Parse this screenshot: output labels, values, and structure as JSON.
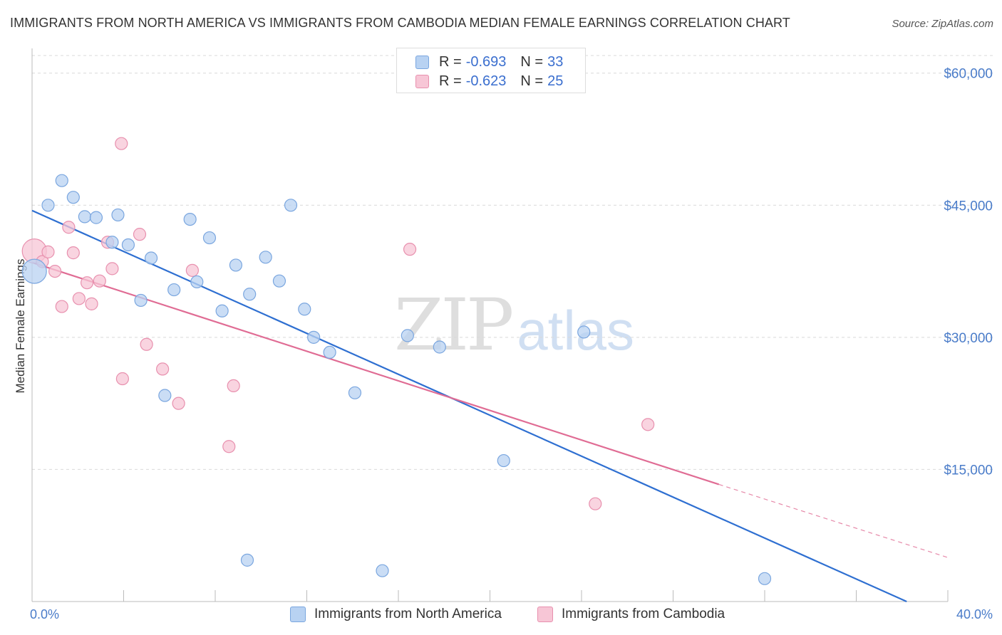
{
  "title": "IMMIGRANTS FROM NORTH AMERICA VS IMMIGRANTS FROM CAMBODIA MEDIAN FEMALE EARNINGS CORRELATION CHART",
  "source": "Source: ZipAtlas.com",
  "watermark": {
    "zip": "ZIP",
    "atlas": "atlas"
  },
  "legend": {
    "rows": [
      {
        "r_label": "R =",
        "r_value": "-0.693",
        "n_label": "N =",
        "n_value": "33"
      },
      {
        "r_label": "R =",
        "r_value": "-0.623",
        "n_label": "N =",
        "n_value": "25"
      }
    ]
  },
  "colors": {
    "north_america_fill": "#b8d2f2",
    "north_america_stroke": "#7aa6df",
    "north_america_line": "#2e6fd1",
    "cambodia_fill": "#f7c6d6",
    "cambodia_stroke": "#e890ae",
    "cambodia_line": "#e06c94",
    "grid": "#d9d9d9",
    "tick_text": "#4a7cc9"
  },
  "chart_data": {
    "type": "scatter",
    "ylabel": "Median Female Earnings",
    "xlim": [
      0,
      40
    ],
    "ylim": [
      0,
      62000
    ],
    "x_tick_labels": [
      "0.0%",
      "40.0%"
    ],
    "y_ticks": [
      15000,
      30000,
      45000,
      60000
    ],
    "y_tick_labels": [
      "$15,000",
      "$30,000",
      "$45,000",
      "$60,000"
    ],
    "grid": true,
    "legend_position": "top-center",
    "series": [
      {
        "name": "Immigrants from North America",
        "r": -0.693,
        "n": 33,
        "points": [
          {
            "x": 0.1,
            "y": 37500,
            "size": "large"
          },
          {
            "x": 0.7,
            "y": 45000
          },
          {
            "x": 1.3,
            "y": 47800
          },
          {
            "x": 1.8,
            "y": 45900
          },
          {
            "x": 2.3,
            "y": 43700
          },
          {
            "x": 2.8,
            "y": 43600
          },
          {
            "x": 3.5,
            "y": 40800
          },
          {
            "x": 3.75,
            "y": 43900
          },
          {
            "x": 4.2,
            "y": 40500
          },
          {
            "x": 4.75,
            "y": 34200
          },
          {
            "x": 5.2,
            "y": 39000
          },
          {
            "x": 5.8,
            "y": 23400
          },
          {
            "x": 6.2,
            "y": 35400
          },
          {
            "x": 7.2,
            "y": 36300
          },
          {
            "x": 6.9,
            "y": 43400
          },
          {
            "x": 7.75,
            "y": 41300
          },
          {
            "x": 8.3,
            "y": 33000
          },
          {
            "x": 8.9,
            "y": 38200
          },
          {
            "x": 9.5,
            "y": 34900
          },
          {
            "x": 10.2,
            "y": 39100
          },
          {
            "x": 10.8,
            "y": 36400
          },
          {
            "x": 11.3,
            "y": 45000
          },
          {
            "x": 11.9,
            "y": 33200
          },
          {
            "x": 12.3,
            "y": 30000
          },
          {
            "x": 13.0,
            "y": 28300
          },
          {
            "x": 14.1,
            "y": 23700
          },
          {
            "x": 16.4,
            "y": 30200
          },
          {
            "x": 17.8,
            "y": 28900
          },
          {
            "x": 24.1,
            "y": 30600
          },
          {
            "x": 20.6,
            "y": 16000
          },
          {
            "x": 9.4,
            "y": 4700
          },
          {
            "x": 15.3,
            "y": 3500
          },
          {
            "x": 32.0,
            "y": 2600
          }
        ],
        "trendline": {
          "x": [
            0,
            38.2
          ],
          "y": [
            44400,
            0
          ]
        }
      },
      {
        "name": "Immigrants from Cambodia",
        "r": -0.623,
        "n": 25,
        "points": [
          {
            "x": 0.1,
            "y": 39800,
            "size": "large"
          },
          {
            "x": 0.45,
            "y": 38600
          },
          {
            "x": 0.7,
            "y": 39700
          },
          {
            "x": 1.0,
            "y": 37500
          },
          {
            "x": 1.3,
            "y": 33500
          },
          {
            "x": 1.6,
            "y": 42500
          },
          {
            "x": 1.8,
            "y": 39600
          },
          {
            "x": 2.05,
            "y": 34400
          },
          {
            "x": 2.4,
            "y": 36200
          },
          {
            "x": 2.6,
            "y": 33800
          },
          {
            "x": 2.95,
            "y": 36400
          },
          {
            "x": 3.3,
            "y": 40800
          },
          {
            "x": 3.5,
            "y": 37800
          },
          {
            "x": 3.9,
            "y": 52000
          },
          {
            "x": 3.95,
            "y": 25300
          },
          {
            "x": 4.7,
            "y": 41700
          },
          {
            "x": 5.0,
            "y": 29200
          },
          {
            "x": 5.7,
            "y": 26400
          },
          {
            "x": 6.4,
            "y": 22500
          },
          {
            "x": 7.0,
            "y": 37600
          },
          {
            "x": 8.8,
            "y": 24500
          },
          {
            "x": 8.6,
            "y": 17600
          },
          {
            "x": 16.5,
            "y": 40000
          },
          {
            "x": 26.9,
            "y": 20100
          },
          {
            "x": 24.6,
            "y": 11100
          }
        ],
        "trendline": {
          "x": [
            0,
            30.0
          ],
          "y": [
            38500,
            13300
          ]
        },
        "trendline_extension": {
          "x": [
            30.0,
            40.0
          ],
          "y": [
            13300,
            5000
          ]
        }
      }
    ]
  }
}
